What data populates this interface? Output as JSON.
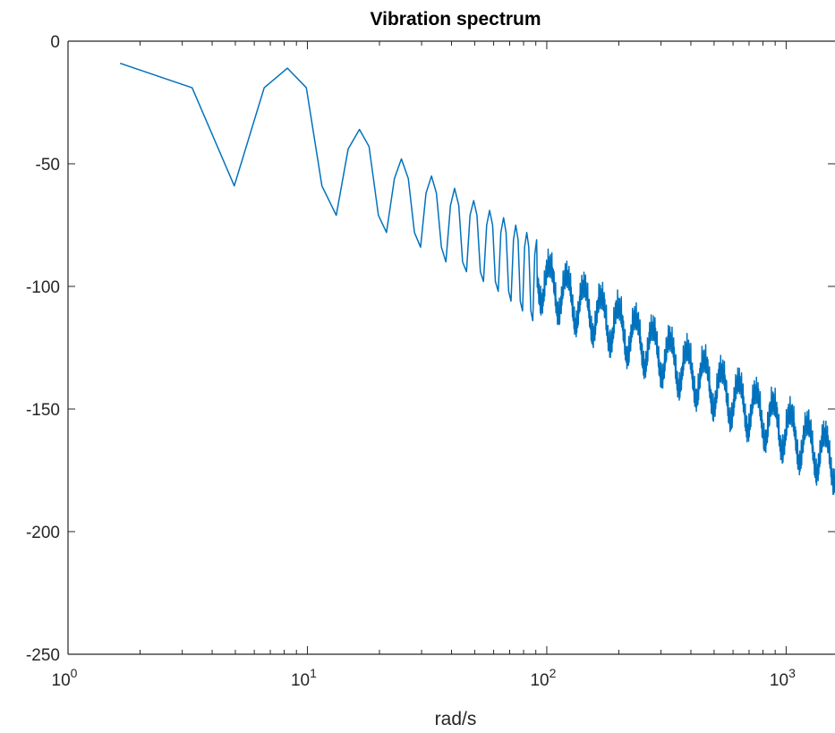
{
  "chart_data": {
    "type": "line",
    "title": "Vibration spectrum",
    "xlabel": "rad/s",
    "ylabel": "",
    "xscale": "log",
    "xlim": [
      1,
      1600
    ],
    "ylim": [
      -250,
      0
    ],
    "grid": false,
    "legend": null,
    "x_ticks": [
      {
        "value": 1,
        "base": "10",
        "exp": "0"
      },
      {
        "value": 10,
        "base": "10",
        "exp": "1"
      },
      {
        "value": 100,
        "base": "10",
        "exp": "2"
      },
      {
        "value": 1000,
        "base": "10",
        "exp": "3"
      }
    ],
    "y_ticks": [
      {
        "value": 0,
        "label": "0"
      },
      {
        "value": -50,
        "label": "-50"
      },
      {
        "value": -100,
        "label": "-100"
      },
      {
        "value": -150,
        "label": "-150"
      },
      {
        "value": -200,
        "label": "-200"
      },
      {
        "value": -250,
        "label": "-250"
      }
    ],
    "series": [
      {
        "color": "#0072BD",
        "x": [
          1.65,
          3.3,
          4.95,
          6.6,
          8.25,
          9.9,
          11.5,
          13.2,
          14.8,
          16.5,
          18.1,
          19.8,
          21.4,
          23.1,
          24.7,
          26.4,
          28.0,
          29.7,
          31.3,
          33.0,
          34.6,
          36.3,
          37.9,
          39.6,
          41.2,
          42.9,
          44.5,
          46.2,
          47.8,
          49.5,
          51.1,
          52.8,
          54.4,
          56.1,
          57.7,
          59.4,
          61.0,
          62.7,
          64.3,
          66.0,
          67.6,
          69.3,
          70.9,
          72.6,
          74.2,
          75.9,
          77.5,
          79.2,
          80.8,
          82.5,
          84.1,
          85.8,
          87.4,
          89.1,
          90.7
        ],
        "y": [
          -9,
          -19,
          -59,
          -19,
          -11,
          -19,
          -59,
          -71,
          -44,
          -36,
          -43,
          -71,
          -78,
          -56,
          -48,
          -56,
          -78,
          -84,
          -62,
          -55,
          -62,
          -84,
          -90,
          -67,
          -60,
          -67,
          -90,
          -94,
          -71,
          -65,
          -71,
          -94,
          -98,
          -75,
          -69,
          -75,
          -98,
          -102,
          -78,
          -72,
          -78,
          -102,
          -106,
          -81,
          -75,
          -81,
          -106,
          -110,
          -84,
          -78,
          -84,
          -110,
          -114,
          -87,
          -81
        ]
      }
    ]
  }
}
